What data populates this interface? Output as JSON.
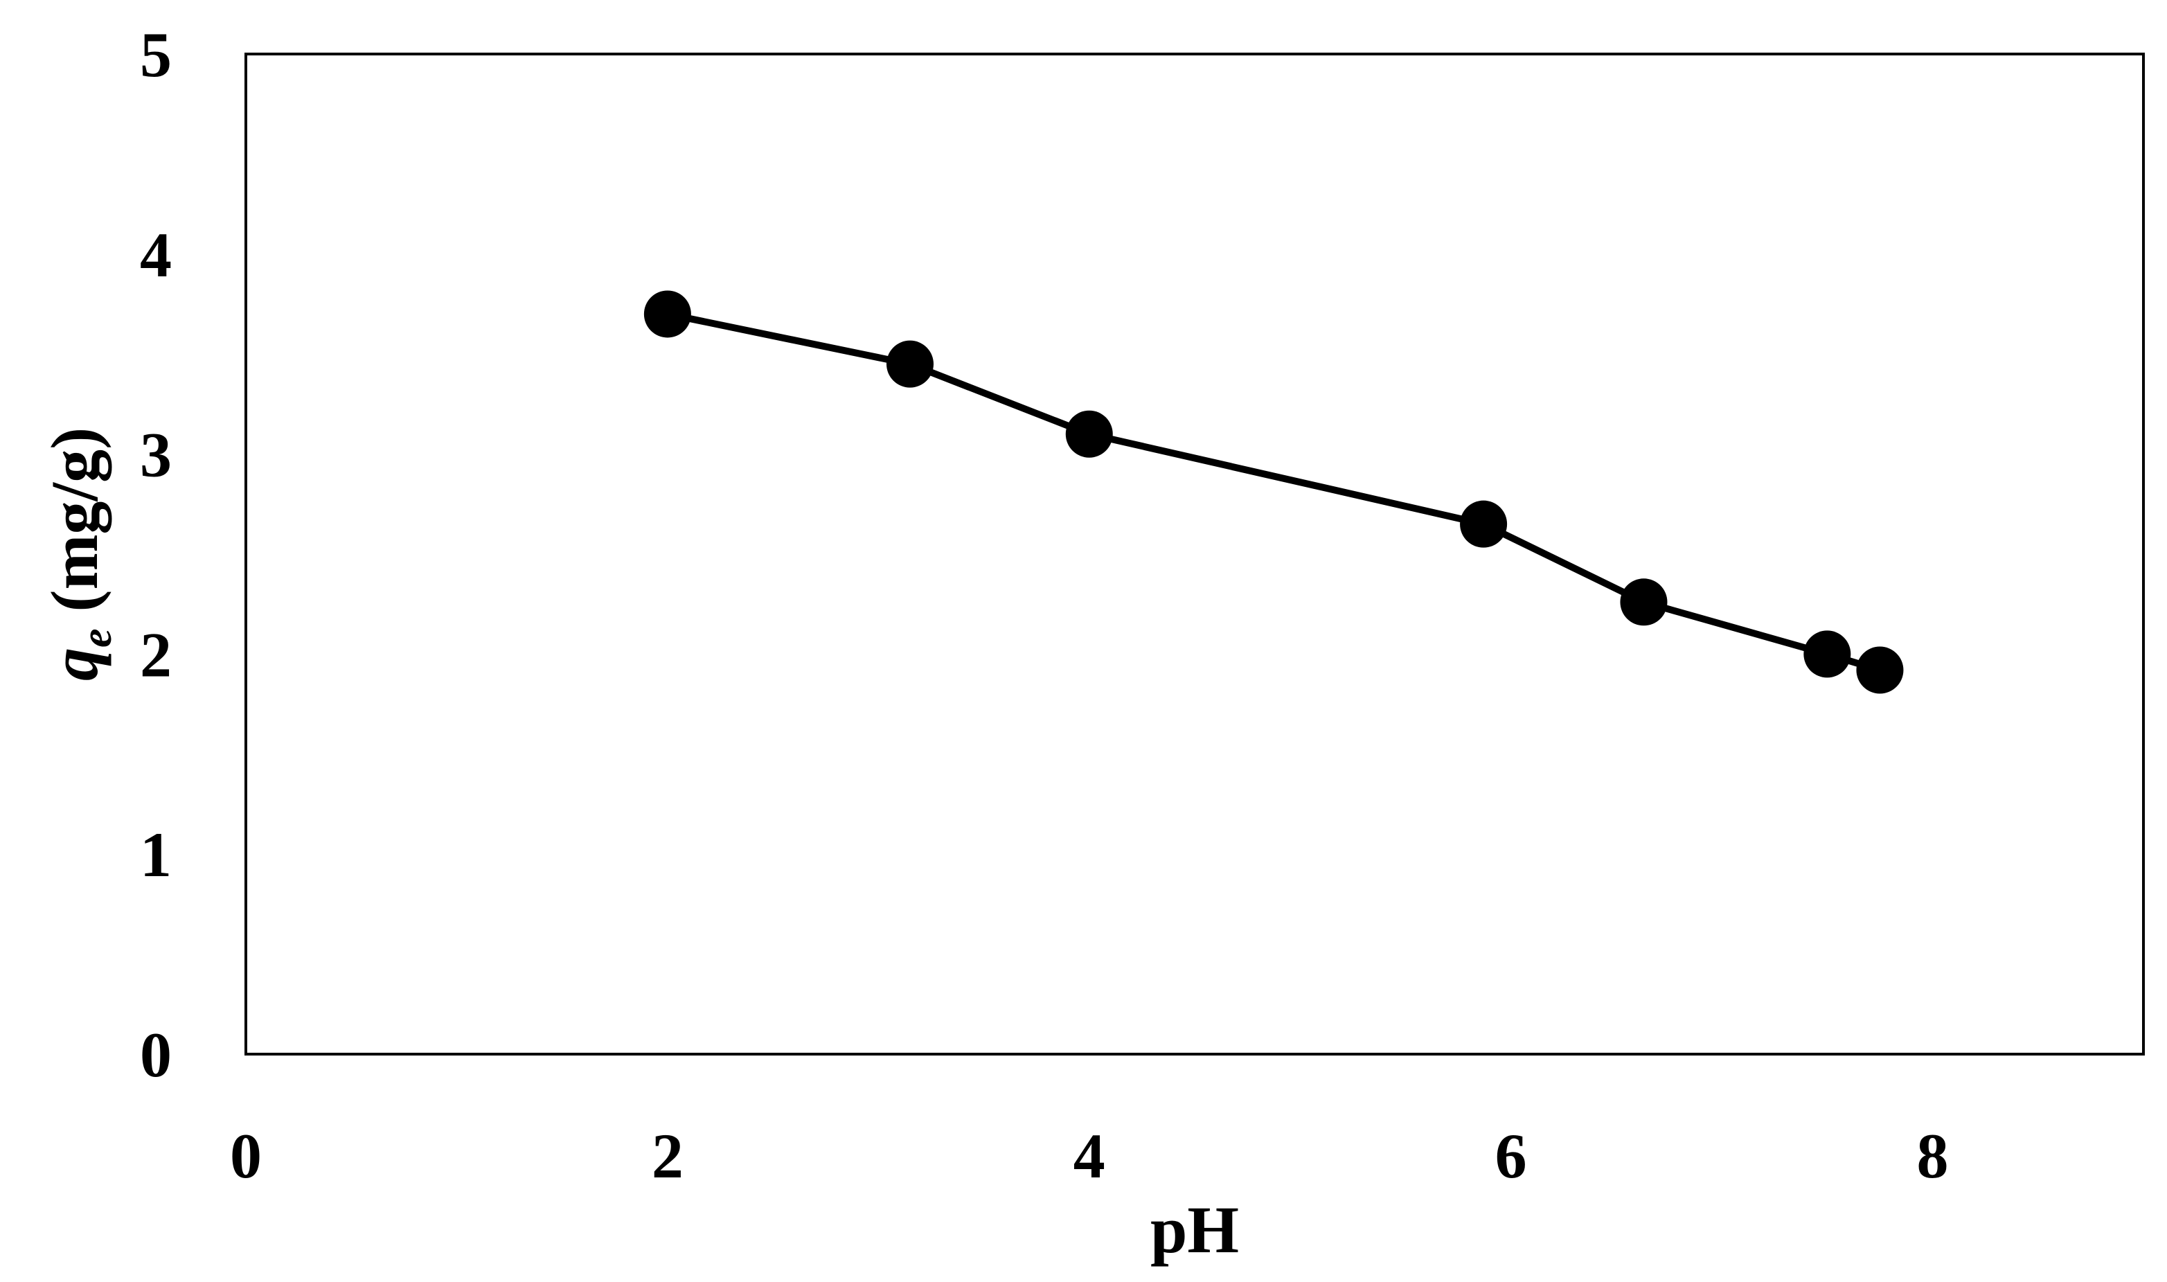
{
  "chart_data": {
    "type": "line",
    "xlabel": "pH",
    "ylabel": {
      "symbol": "q",
      "subscript": "e",
      "unit": " (mg/g)"
    },
    "xlim": [
      0,
      9
    ],
    "ylim": [
      0,
      5
    ],
    "x_ticks": [
      "0",
      "2",
      "4",
      "6",
      "8"
    ],
    "y_ticks": [
      "0",
      "1",
      "2",
      "3",
      "4",
      "5"
    ],
    "grid": false,
    "legend": "none",
    "series": [
      {
        "x": [
          2.0,
          3.15,
          4.0,
          5.87,
          6.63,
          7.5,
          7.75
        ],
        "y": [
          3.7,
          3.45,
          3.1,
          2.65,
          2.26,
          2.0,
          1.92
        ],
        "marker": "circle",
        "color": "#000000"
      }
    ]
  }
}
